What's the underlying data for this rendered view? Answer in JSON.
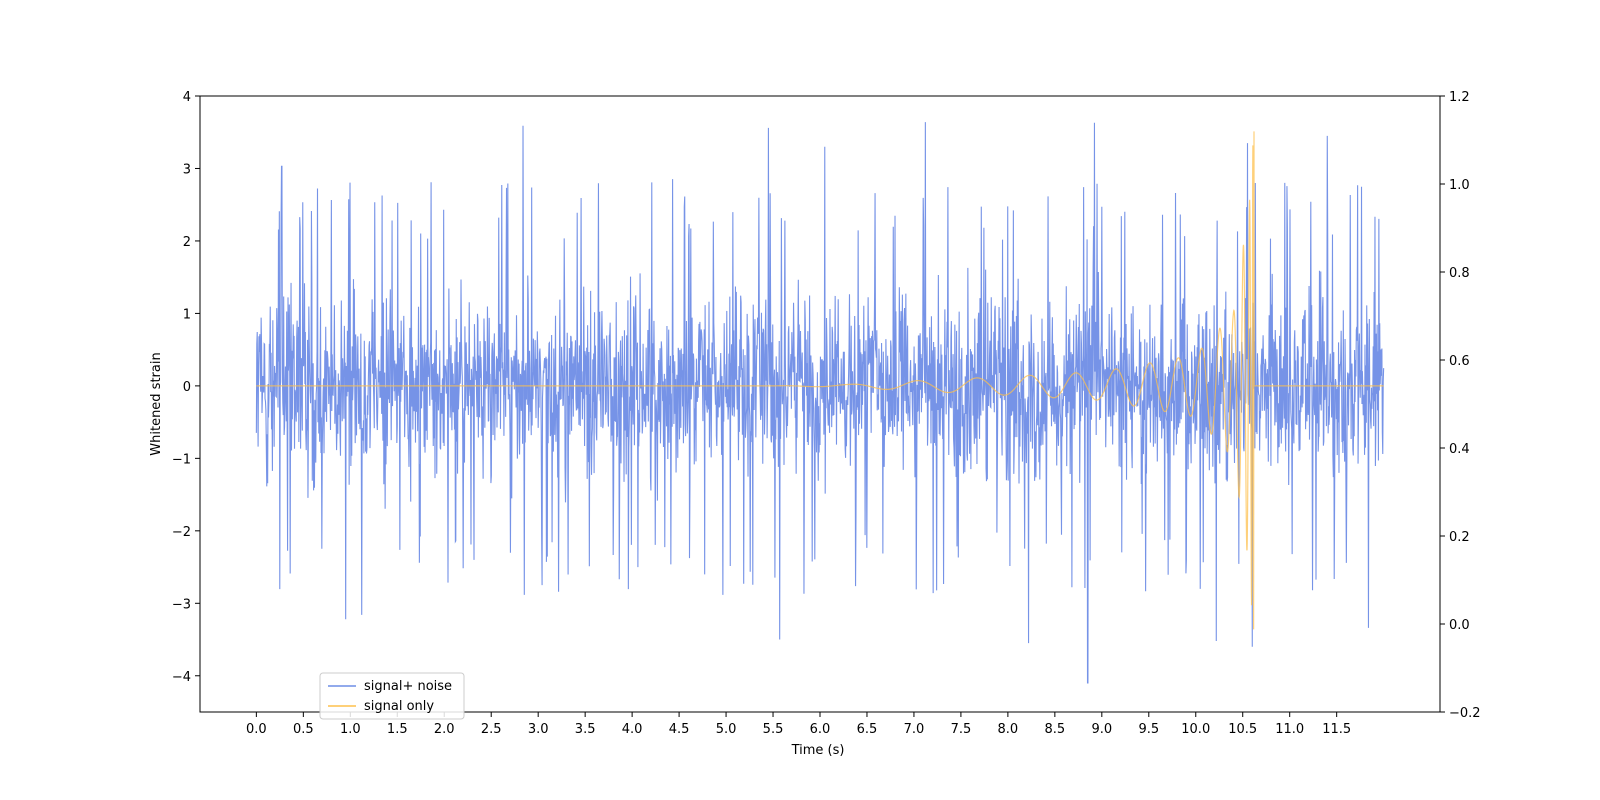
{
  "chart_data": {
    "type": "line",
    "title": "",
    "xlabel": "Time (s)",
    "ylabel": "Whitened strain",
    "y2label": "",
    "xlim": [
      -0.6,
      12.6
    ],
    "ylim": [
      -4.5,
      4.0
    ],
    "y2lim": [
      -0.2,
      1.2
    ],
    "x_tick_labels": [
      "0.0",
      "0.5",
      "1.0",
      "1.5",
      "2.0",
      "2.5",
      "3.0",
      "3.5",
      "4.0",
      "4.5",
      "5.0",
      "5.5",
      "6.0",
      "6.5",
      "7.0",
      "7.5",
      "8.0",
      "8.5",
      "9.0",
      "9.5",
      "10.0",
      "10.5",
      "11.0",
      "11.5"
    ],
    "y_tick_labels": [
      "4",
      "3",
      "2",
      "1",
      "0",
      "−1",
      "−2",
      "−3",
      "−4"
    ],
    "y2_tick_labels": [
      "1.2",
      "1.0",
      "0.8",
      "0.6",
      "0.4",
      "0.2",
      "0.0",
      "−0.2"
    ],
    "legend_placement": "lower-left",
    "grid": false,
    "series": [
      {
        "name": "signal+ noise",
        "color": "#6f8de6",
        "x_range": [
          0.0,
          12.0
        ],
        "typical_envelope": [
          -1.5,
          1.5
        ],
        "notable_peaks": [
          {
            "x": 2.84,
            "y": 3.59
          },
          {
            "x": 5.45,
            "y": 3.56
          },
          {
            "x": 7.12,
            "y": 3.64
          },
          {
            "x": 8.92,
            "y": 3.63
          },
          {
            "x": 10.55,
            "y": 3.35
          },
          {
            "x": 11.4,
            "y": 3.45
          },
          {
            "x": 6.05,
            "y": 3.3
          },
          {
            "x": 0.27,
            "y": 3.03
          }
        ],
        "notable_troughs": [
          {
            "x": 8.85,
            "y": -4.1
          },
          {
            "x": 8.22,
            "y": -3.55
          },
          {
            "x": 5.57,
            "y": -3.5
          },
          {
            "x": 10.22,
            "y": -3.52
          },
          {
            "x": 11.84,
            "y": -3.34
          },
          {
            "x": 10.6,
            "y": -3.6
          },
          {
            "x": 0.95,
            "y": -3.22
          },
          {
            "x": 1.12,
            "y": -3.16
          }
        ]
      },
      {
        "name": "signal only",
        "color": "#fdc04d",
        "x_range": [
          0.0,
          12.0
        ],
        "description_points": [
          {
            "x": 6.3,
            "amplitude": 0.02
          },
          {
            "x": 7.0,
            "amplitude": 0.07
          },
          {
            "x": 8.0,
            "amplitude": 0.13
          },
          {
            "x": 9.0,
            "amplitude": 0.2
          },
          {
            "x": 10.0,
            "amplitude": 0.43
          },
          {
            "x": 10.4,
            "amplitude": 1.0
          },
          {
            "x": 10.57,
            "amplitude": 2.5
          },
          {
            "x": 10.62,
            "amplitude": 3.6
          }
        ],
        "merger_time": 10.62
      }
    ]
  }
}
